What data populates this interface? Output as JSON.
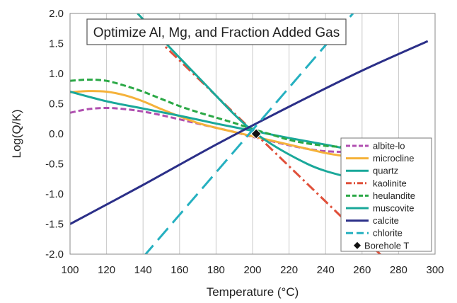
{
  "chart_data": {
    "type": "line",
    "title": "Optimize Al, Mg, and Fraction Added Gas",
    "xlabel": "Temperature (°C)",
    "ylabel": "Log(Q/K)",
    "xlim": [
      100,
      300
    ],
    "ylim": [
      -2.0,
      2.0
    ],
    "xticks": [
      100,
      120,
      140,
      160,
      180,
      200,
      220,
      240,
      260,
      280,
      300
    ],
    "yticks": [
      -2.0,
      -1.5,
      -1.0,
      -0.5,
      0.0,
      0.5,
      1.0,
      1.5,
      2.0
    ],
    "ytick_labels": [
      "-2.0",
      "-1.5",
      "-1.0",
      "-0.5",
      "0.0",
      "0.5",
      "1.0",
      "1.5",
      "2.0"
    ],
    "grid": {
      "vertical": true,
      "horizontal": false
    },
    "legend": "bottom-right",
    "series": [
      {
        "name": "albite-lo",
        "color": "#b04fb0",
        "dash": "dashed",
        "x": [
          100,
          110,
          120,
          130,
          140,
          150,
          160,
          170,
          180,
          190,
          200,
          210,
          220,
          230,
          240,
          250
        ],
        "y": [
          0.35,
          0.41,
          0.43,
          0.41,
          0.37,
          0.31,
          0.24,
          0.17,
          0.1,
          0.03,
          -0.05,
          -0.12,
          -0.19,
          -0.25,
          -0.29,
          -0.3
        ]
      },
      {
        "name": "microcline",
        "color": "#f5b23a",
        "dash": "solid",
        "x": [
          100,
          110,
          120,
          130,
          140,
          150,
          160,
          170,
          180,
          190,
          200,
          210,
          220,
          230,
          240,
          250
        ],
        "y": [
          0.69,
          0.71,
          0.7,
          0.64,
          0.54,
          0.41,
          0.29,
          0.18,
          0.1,
          0.03,
          -0.04,
          -0.11,
          -0.18,
          -0.25,
          -0.32,
          -0.37
        ]
      },
      {
        "name": "quartz",
        "color": "#1aa89a",
        "dash": "solid",
        "x": [
          100,
          120,
          140,
          160,
          180,
          200,
          220,
          240,
          250
        ],
        "y": [
          0.7,
          0.54,
          0.42,
          0.3,
          0.17,
          0.05,
          -0.07,
          -0.18,
          -0.24
        ]
      },
      {
        "name": "kaolinite",
        "color": "#e0503a",
        "dash": "dashdot",
        "x": [
          147,
          275
        ],
        "y": [
          1.6,
          -2.15
        ]
      },
      {
        "name": "heulandite",
        "color": "#2aa845",
        "dash": "dashed",
        "x": [
          100,
          110,
          120,
          130,
          140,
          150,
          160,
          170,
          180,
          190,
          200,
          210,
          220,
          230,
          240,
          250
        ],
        "y": [
          0.88,
          0.9,
          0.88,
          0.8,
          0.7,
          0.58,
          0.46,
          0.36,
          0.27,
          0.18,
          0.08,
          -0.01,
          -0.1,
          -0.16,
          -0.2,
          -0.22
        ]
      },
      {
        "name": "muscovite",
        "color": "#1aa89a",
        "dash": "solid",
        "x": [
          137,
          170,
          200,
          230,
          252
        ],
        "y": [
          2.0,
          0.95,
          0.05,
          -0.5,
          -0.72
        ]
      },
      {
        "name": "calcite",
        "color": "#2b2f88",
        "dash": "solid",
        "x": [
          100,
          140,
          180,
          220,
          260,
          296
        ],
        "y": [
          -1.5,
          -0.85,
          -0.18,
          0.45,
          1.05,
          1.54
        ]
      },
      {
        "name": "chlorite",
        "color": "#25b0c0",
        "dash": "longdash",
        "x": [
          140,
          255
        ],
        "y": [
          -2.05,
          2.0
        ]
      },
      {
        "name": "Borehole T",
        "color": "#111111",
        "marker": "diamond",
        "x": [
          202
        ],
        "y": [
          0.0
        ]
      }
    ]
  }
}
